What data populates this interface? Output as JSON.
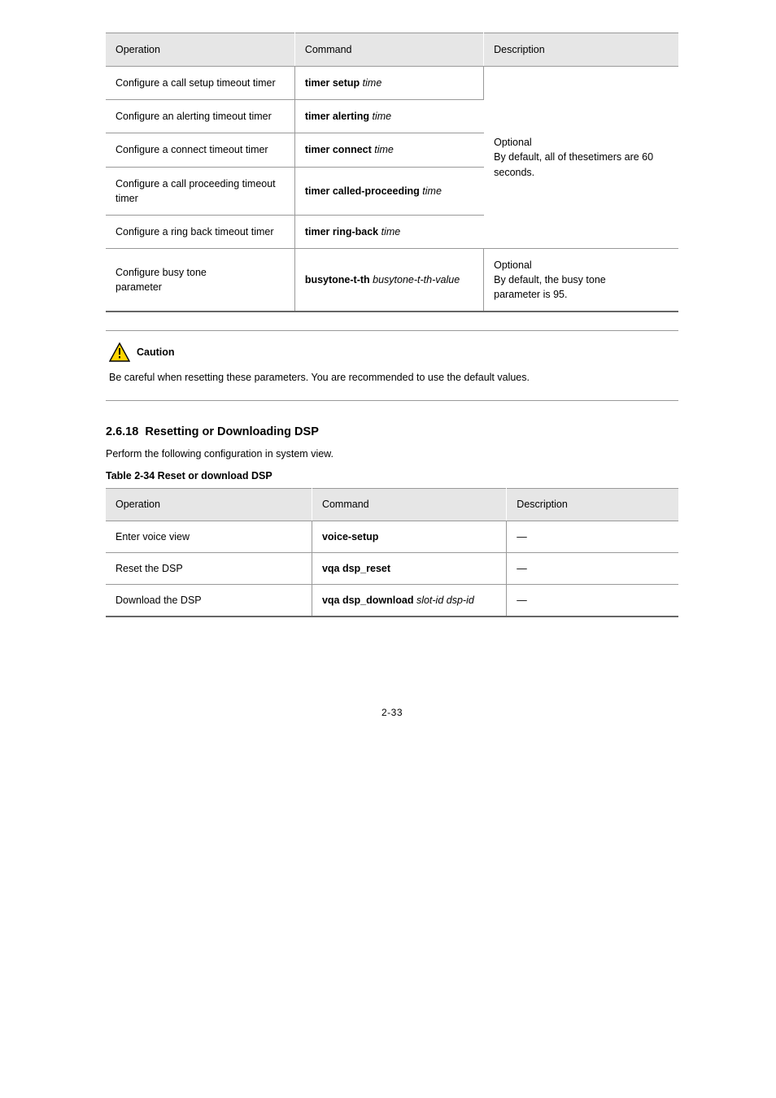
{
  "table1": {
    "headers": [
      "Operation",
      "Command",
      "Description"
    ],
    "rows": [
      {
        "op": "Configure a call setup timeout timer",
        "cmd": "timer setup <time>",
        "desc_span": true
      },
      {
        "op": "Configure an alerting timeout timer",
        "cmd": "timer alerting <time>"
      },
      {
        "op": "Configure a connect timeout timer",
        "cmd": "timer connect <time>"
      },
      {
        "op": "Configure a call proceeding timeout timer",
        "cmd": "timer called-proceeding <time>"
      },
      {
        "op": "Configure a ring back timeout timer",
        "cmd": "timer ring-back <time>"
      },
      {
        "op": "Configure busy tone\nparameter",
        "cmd": "busytone-t-th <busytone-t-th-value>",
        "desc": "Optional\nBy default, the busy tone\nparameter is 95."
      }
    ],
    "merged_desc": "Optional\nBy default, all of thesetimers are 60 seconds."
  },
  "caution": {
    "label": "Caution",
    "text": "Be careful when resetting these parameters. You are recommended to use the default values."
  },
  "section": {
    "num": "2.6.18",
    "title": "Resetting or Downloading DSP",
    "body": "Perform the following configuration in system view.",
    "caption": "Table 2-34 Reset or download DSP"
  },
  "table2": {
    "headers": [
      "Operation",
      "Command",
      "Description"
    ],
    "rows": [
      {
        "op": "Enter voice view",
        "cmd": "voice-setup",
        "desc": "—"
      },
      {
        "op": "Reset the DSP",
        "cmd": "vqa dsp_reset",
        "desc": "—"
      },
      {
        "op": "Download the DSP",
        "cmd": "vqa dsp_download <slot-id> <dsp-id>",
        "desc": "—"
      }
    ]
  },
  "page_number": "2-33"
}
